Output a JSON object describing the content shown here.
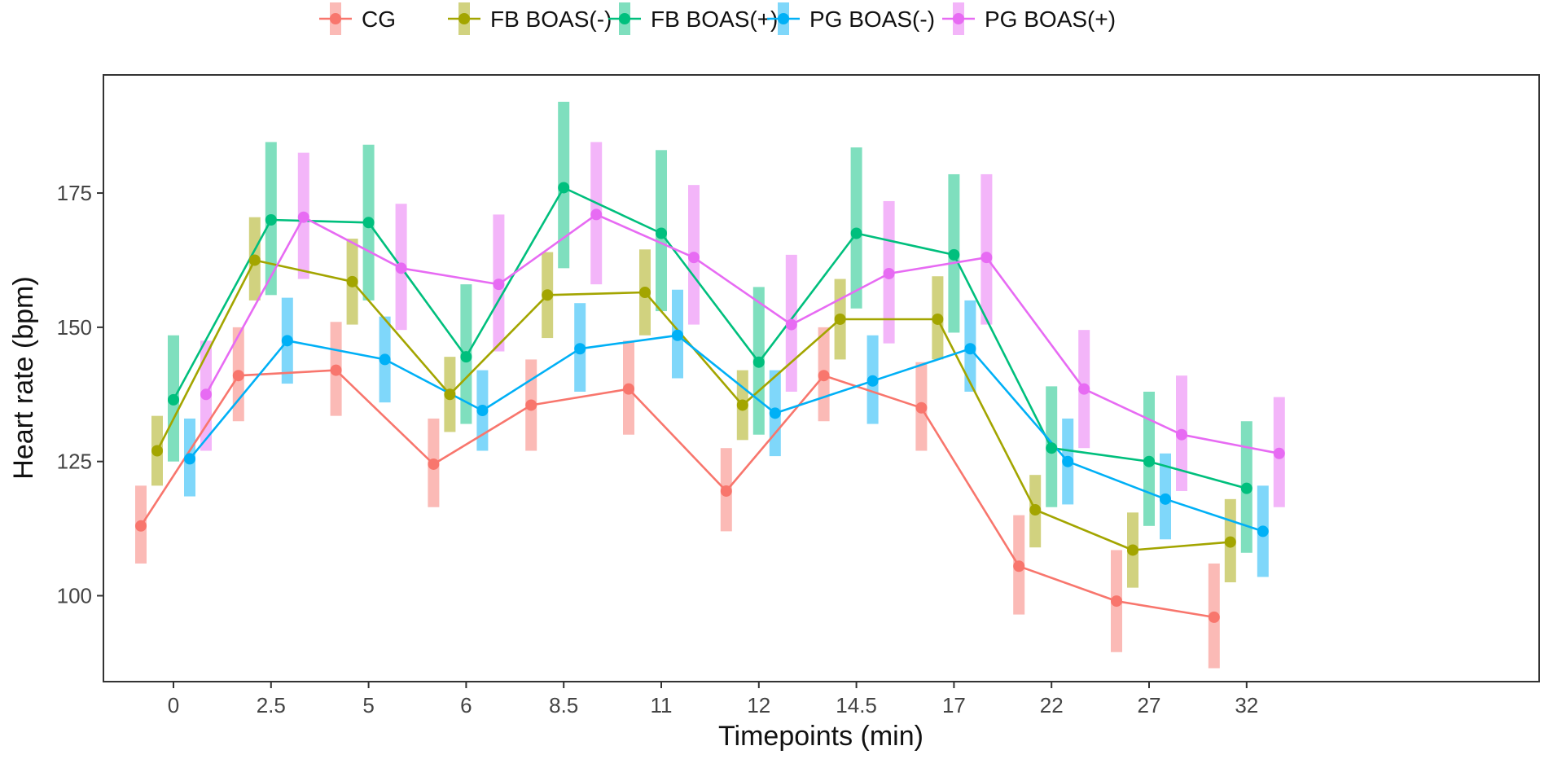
{
  "chart_data": {
    "type": "line",
    "title": "",
    "xlabel": "Timepoints (min)",
    "ylabel": "Heart rate (bpm)",
    "categories": [
      "0",
      "2.5",
      "5",
      "6",
      "8.5",
      "11",
      "12",
      "14.5",
      "17",
      "22",
      "27",
      "32"
    ],
    "yticks": [
      100,
      125,
      150,
      175
    ],
    "ylim": [
      84,
      197
    ],
    "grid": false,
    "legend_position": "top",
    "series": [
      {
        "name": "CG",
        "color": "#F8766D",
        "values": [
          113,
          141,
          142,
          124.5,
          135.5,
          138.5,
          119.5,
          141,
          135,
          105.5,
          99,
          96
        ],
        "lower": [
          106,
          132.5,
          133.5,
          116.5,
          127,
          130,
          112,
          132.5,
          127,
          96.5,
          89.5,
          86.5
        ],
        "upper": [
          120.5,
          150,
          151,
          133,
          144,
          147.5,
          127.5,
          150,
          143.5,
          115,
          108.5,
          106
        ]
      },
      {
        "name": "FB BOAS(-)",
        "color": "#A3A500",
        "values": [
          127,
          162.5,
          158.5,
          137.5,
          156,
          156.5,
          135.5,
          151.5,
          151.5,
          116,
          108.5,
          110
        ],
        "lower": [
          120.5,
          155,
          150.5,
          130.5,
          148,
          148.5,
          129,
          144,
          144,
          109,
          101.5,
          102.5
        ],
        "upper": [
          133.5,
          170.5,
          166.5,
          144.5,
          164,
          164.5,
          142,
          159,
          159.5,
          122.5,
          115.5,
          118
        ]
      },
      {
        "name": "FB BOAS(+)",
        "color": "#00BF7D",
        "values": [
          136.5,
          170,
          169.5,
          144.5,
          176,
          167.5,
          143.5,
          167.5,
          163.5,
          127.5,
          125,
          120
        ],
        "lower": [
          125,
          156,
          155,
          132,
          161,
          153,
          130,
          153.5,
          149,
          116.5,
          113,
          108
        ],
        "upper": [
          148.5,
          184.5,
          184,
          158,
          192,
          183,
          157.5,
          183.5,
          178.5,
          139,
          138,
          132.5
        ]
      },
      {
        "name": "PG BOAS(-)",
        "color": "#00B0F6",
        "values": [
          125.5,
          147.5,
          144,
          134.5,
          146,
          148.5,
          134,
          140,
          146,
          125,
          118,
          112
        ],
        "lower": [
          118.5,
          139.5,
          136,
          127,
          138,
          140.5,
          126,
          132,
          138,
          117,
          110.5,
          103.5
        ],
        "upper": [
          133,
          155.5,
          152,
          142,
          154.5,
          157,
          142,
          148.5,
          155,
          133,
          126.5,
          120.5
        ]
      },
      {
        "name": "PG BOAS(+)",
        "color": "#E76BF3",
        "values": [
          137.5,
          170.5,
          161,
          158,
          171,
          163,
          150.5,
          160,
          163,
          138.5,
          130,
          126.5
        ],
        "lower": [
          127,
          159,
          149.5,
          145.5,
          158,
          150.5,
          138,
          147,
          150.5,
          127.5,
          119.5,
          116.5
        ],
        "upper": [
          147.5,
          182.5,
          173,
          171,
          184.5,
          176.5,
          163.5,
          173.5,
          178.5,
          149.5,
          141,
          137
        ]
      }
    ]
  }
}
